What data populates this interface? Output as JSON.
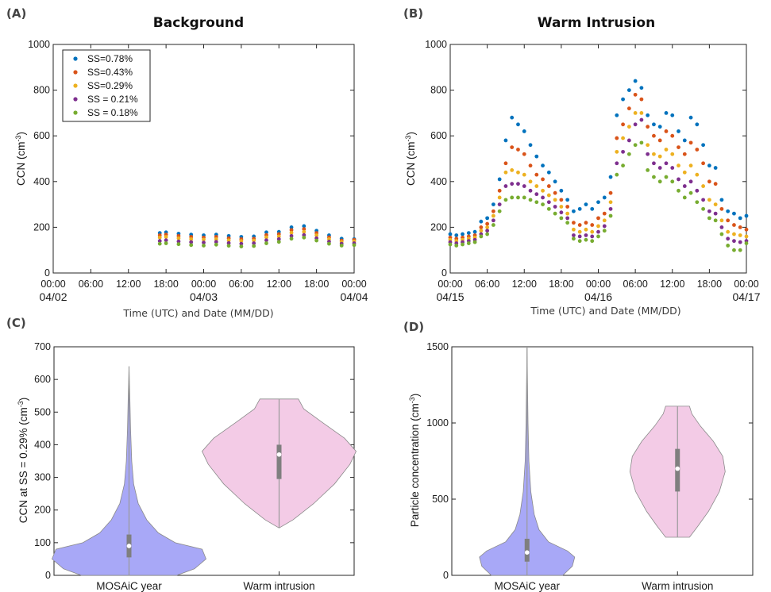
{
  "chart_data": [
    {
      "panel": "(A)",
      "type": "scatter",
      "title": "Background",
      "xlabel": "Time (UTC) and Date (MM/DD)",
      "ylabel": "CCN (cm",
      "ylabel_sup": "-3",
      "ylabel_close": ")",
      "xlim": [
        0,
        48
      ],
      "ylim": [
        0,
        1000
      ],
      "yticks": [
        "0",
        "200",
        "400",
        "600",
        "800",
        "1000"
      ],
      "xtick_labels": [
        "00:00",
        "06:00",
        "12:00",
        "18:00",
        "00:00",
        "06:00",
        "12:00",
        "18:00",
        "00:00"
      ],
      "date_labels": [
        "04/02",
        "04/03",
        "04/04"
      ],
      "legend_position": "top-left",
      "series": [
        {
          "name": "SS=0.78%",
          "color": "#0072BD",
          "x": [
            17,
            18,
            20,
            22,
            24,
            26,
            28,
            30,
            32,
            34,
            36,
            38,
            40,
            42,
            44,
            46,
            48
          ],
          "y": [
            175,
            178,
            172,
            168,
            165,
            168,
            162,
            158,
            160,
            178,
            180,
            200,
            205,
            185,
            165,
            150,
            148
          ]
        },
        {
          "name": "SS=0.43%",
          "color": "#D95319",
          "x": [
            17,
            18,
            20,
            22,
            24,
            26,
            28,
            30,
            32,
            34,
            36,
            38,
            40,
            42,
            44,
            46,
            48
          ],
          "y": [
            165,
            168,
            162,
            158,
            155,
            158,
            152,
            148,
            150,
            166,
            170,
            188,
            192,
            175,
            156,
            142,
            145
          ]
        },
        {
          "name": "SS=0.29%",
          "color": "#EDB120",
          "x": [
            17,
            18,
            20,
            22,
            24,
            26,
            28,
            30,
            32,
            34,
            36,
            38,
            40,
            42,
            44,
            46,
            48
          ],
          "y": [
            155,
            158,
            152,
            148,
            146,
            148,
            143,
            140,
            142,
            156,
            160,
            176,
            180,
            165,
            148,
            136,
            138
          ]
        },
        {
          "name": "SS = 0.21%",
          "color": "#7E2F8E",
          "x": [
            17,
            18,
            20,
            22,
            24,
            26,
            28,
            30,
            32,
            34,
            36,
            38,
            40,
            42,
            44,
            46,
            48
          ],
          "y": [
            140,
            143,
            138,
            135,
            133,
            136,
            131,
            128,
            130,
            143,
            148,
            162,
            166,
            152,
            137,
            128,
            130
          ]
        },
        {
          "name": "SS = 0.18%",
          "color": "#77AC30",
          "x": [
            17,
            18,
            20,
            22,
            24,
            26,
            28,
            30,
            32,
            34,
            36,
            38,
            40,
            42,
            44,
            46,
            48
          ],
          "y": [
            128,
            130,
            126,
            122,
            120,
            124,
            119,
            116,
            118,
            130,
            136,
            150,
            155,
            142,
            128,
            120,
            122
          ]
        }
      ]
    },
    {
      "panel": "(B)",
      "type": "scatter",
      "title": "Warm Intrusion",
      "xlabel": "Time (UTC) and Date (MM/DD)",
      "ylabel": "CCN (cm",
      "ylabel_sup": "-3",
      "ylabel_close": ")",
      "xlim": [
        0,
        48
      ],
      "ylim": [
        0,
        1000
      ],
      "yticks": [
        "0",
        "200",
        "400",
        "600",
        "800",
        "1000"
      ],
      "xtick_labels": [
        "00:00",
        "06:00",
        "12:00",
        "18:00",
        "00:00",
        "06:00",
        "12:00",
        "18:00",
        "00:00"
      ],
      "date_labels": [
        "04/15",
        "04/16",
        "04/17"
      ],
      "series": [
        {
          "name": "SS=0.78%",
          "color": "#0072BD",
          "x": [
            0,
            1,
            2,
            3,
            4,
            5,
            6,
            7,
            8,
            9,
            10,
            11,
            12,
            13,
            14,
            15,
            16,
            17,
            18,
            19,
            20,
            21,
            22,
            23,
            24,
            25,
            26,
            27,
            28,
            29,
            30,
            31,
            32,
            33,
            34,
            35,
            36,
            37,
            38,
            39,
            40,
            41,
            42,
            43,
            44,
            45,
            46,
            47,
            48
          ],
          "y": [
            170,
            165,
            170,
            175,
            180,
            225,
            240,
            300,
            410,
            580,
            680,
            650,
            620,
            560,
            510,
            470,
            440,
            400,
            360,
            320,
            270,
            280,
            300,
            280,
            310,
            330,
            420,
            690,
            760,
            800,
            840,
            810,
            690,
            650,
            640,
            700,
            690,
            620,
            580,
            680,
            650,
            560,
            470,
            460,
            320,
            270,
            260,
            240,
            250
          ]
        },
        {
          "name": "SS=0.43%",
          "color": "#D95319",
          "x": [
            0,
            1,
            2,
            3,
            4,
            5,
            6,
            7,
            8,
            9,
            10,
            11,
            12,
            13,
            14,
            15,
            16,
            17,
            18,
            19,
            20,
            21,
            22,
            23,
            24,
            25,
            26,
            27,
            28,
            29,
            30,
            31,
            32,
            33,
            34,
            35,
            36,
            37,
            38,
            39,
            40,
            41,
            42,
            43,
            44,
            45,
            46,
            47,
            48
          ],
          "y": [
            155,
            150,
            155,
            160,
            165,
            200,
            215,
            270,
            360,
            480,
            550,
            540,
            520,
            470,
            430,
            410,
            380,
            350,
            320,
            290,
            220,
            210,
            220,
            210,
            240,
            260,
            350,
            590,
            650,
            720,
            780,
            760,
            640,
            600,
            580,
            620,
            600,
            550,
            520,
            570,
            540,
            480,
            400,
            390,
            280,
            230,
            210,
            200,
            190
          ]
        },
        {
          "name": "SS=0.29%",
          "color": "#EDB120",
          "x": [
            0,
            1,
            2,
            3,
            4,
            5,
            6,
            7,
            8,
            9,
            10,
            11,
            12,
            13,
            14,
            15,
            16,
            17,
            18,
            19,
            20,
            21,
            22,
            23,
            24,
            25,
            26,
            27,
            28,
            29,
            30,
            31,
            32,
            33,
            34,
            35,
            36,
            37,
            38,
            39,
            40,
            41,
            42,
            43,
            44,
            45,
            46,
            47,
            48
          ],
          "y": [
            145,
            140,
            145,
            150,
            155,
            185,
            200,
            250,
            330,
            440,
            450,
            440,
            430,
            400,
            380,
            360,
            340,
            320,
            290,
            260,
            190,
            180,
            190,
            180,
            205,
            230,
            310,
            530,
            590,
            640,
            700,
            700,
            560,
            520,
            510,
            540,
            520,
            470,
            440,
            470,
            430,
            380,
            320,
            300,
            230,
            180,
            170,
            165,
            160
          ]
        },
        {
          "name": "SS = 0.21%",
          "color": "#7E2F8E",
          "x": [
            0,
            1,
            2,
            3,
            4,
            5,
            6,
            7,
            8,
            9,
            10,
            11,
            12,
            13,
            14,
            15,
            16,
            17,
            18,
            19,
            20,
            21,
            22,
            23,
            24,
            25,
            26,
            27,
            28,
            29,
            30,
            31,
            32,
            33,
            34,
            35,
            36,
            37,
            38,
            39,
            40,
            41,
            42,
            43,
            44,
            45,
            46,
            47,
            48
          ],
          "y": [
            135,
            130,
            135,
            140,
            145,
            170,
            185,
            230,
            300,
            380,
            390,
            390,
            380,
            360,
            345,
            330,
            310,
            290,
            265,
            240,
            165,
            160,
            165,
            160,
            180,
            205,
            280,
            480,
            530,
            580,
            650,
            670,
            520,
            480,
            460,
            480,
            460,
            410,
            380,
            400,
            360,
            320,
            270,
            260,
            200,
            150,
            140,
            135,
            140
          ]
        },
        {
          "name": "SS = 0.18%",
          "color": "#77AC30",
          "x": [
            0,
            1,
            2,
            3,
            4,
            5,
            6,
            7,
            8,
            9,
            10,
            11,
            12,
            13,
            14,
            15,
            16,
            17,
            18,
            19,
            20,
            21,
            22,
            23,
            24,
            25,
            26,
            27,
            28,
            29,
            30,
            31,
            32,
            33,
            34,
            35,
            36,
            37,
            38,
            39,
            40,
            41,
            42,
            43,
            44,
            45,
            46,
            47,
            48
          ],
          "y": [
            125,
            120,
            125,
            130,
            135,
            160,
            170,
            210,
            270,
            320,
            330,
            330,
            330,
            320,
            310,
            300,
            280,
            260,
            240,
            220,
            150,
            140,
            145,
            140,
            160,
            185,
            250,
            430,
            470,
            520,
            560,
            570,
            450,
            420,
            400,
            420,
            400,
            360,
            330,
            350,
            310,
            280,
            240,
            230,
            170,
            120,
            100,
            100,
            130
          ]
        }
      ]
    },
    {
      "panel": "(C)",
      "type": "violin",
      "ylabel": "CCN at SS = 0.29% (cm",
      "ylabel_sup": "-3",
      "ylabel_close": ")",
      "ylim": [
        0,
        700
      ],
      "yticks": [
        "0",
        "100",
        "200",
        "300",
        "400",
        "500",
        "600",
        "700"
      ],
      "categories": [
        "MOSAiC year",
        "Warm intrusion"
      ],
      "violins": [
        {
          "name": "MOSAiC year",
          "color": "#a8a8f7",
          "min": 0,
          "max": 640,
          "q1": 55,
          "median": 90,
          "q3": 125,
          "profile": [
            [
              0,
              0.62
            ],
            [
              20,
              0.85
            ],
            [
              50,
              1.0
            ],
            [
              80,
              0.95
            ],
            [
              100,
              0.6
            ],
            [
              130,
              0.38
            ],
            [
              170,
              0.23
            ],
            [
              220,
              0.12
            ],
            [
              280,
              0.06
            ],
            [
              350,
              0.035
            ],
            [
              450,
              0.02
            ],
            [
              550,
              0.01
            ],
            [
              640,
              0.0
            ]
          ]
        },
        {
          "name": "Warm intrusion",
          "color": "#f3cbe6",
          "min": 145,
          "max": 540,
          "q1": 295,
          "median": 370,
          "q3": 400,
          "profile": [
            [
              145,
              0.0
            ],
            [
              170,
              0.18
            ],
            [
              220,
              0.45
            ],
            [
              280,
              0.72
            ],
            [
              340,
              0.92
            ],
            [
              380,
              1.0
            ],
            [
              420,
              0.85
            ],
            [
              470,
              0.55
            ],
            [
              510,
              0.32
            ],
            [
              540,
              0.25
            ]
          ]
        }
      ]
    },
    {
      "panel": "(D)",
      "type": "violin",
      "ylabel": "Particle concentration (cm",
      "ylabel_sup": "-3",
      "ylabel_close": ")",
      "ylim": [
        0,
        1500
      ],
      "yticks": [
        "0",
        "500",
        "1000",
        "1500"
      ],
      "categories": [
        "MOSAiC year",
        "Warm intrusion"
      ],
      "violins": [
        {
          "name": "MOSAiC year",
          "color": "#a8a8f7",
          "min": 0,
          "max": 1500,
          "q1": 90,
          "median": 150,
          "q3": 240,
          "profile": [
            [
              0,
              0.75
            ],
            [
              60,
              0.95
            ],
            [
              120,
              1.0
            ],
            [
              160,
              0.85
            ],
            [
              220,
              0.45
            ],
            [
              300,
              0.25
            ],
            [
              400,
              0.15
            ],
            [
              550,
              0.08
            ],
            [
              750,
              0.04
            ],
            [
              1000,
              0.02
            ],
            [
              1250,
              0.01
            ],
            [
              1500,
              0.0
            ]
          ]
        },
        {
          "name": "Warm intrusion",
          "color": "#f3cbe6",
          "min": 250,
          "max": 1110,
          "q1": 550,
          "median": 700,
          "q3": 830,
          "profile": [
            [
              250,
              0.25
            ],
            [
              320,
              0.42
            ],
            [
              420,
              0.65
            ],
            [
              550,
              0.88
            ],
            [
              680,
              1.0
            ],
            [
              780,
              0.95
            ],
            [
              880,
              0.75
            ],
            [
              980,
              0.48
            ],
            [
              1060,
              0.3
            ],
            [
              1110,
              0.25
            ]
          ]
        }
      ]
    }
  ]
}
